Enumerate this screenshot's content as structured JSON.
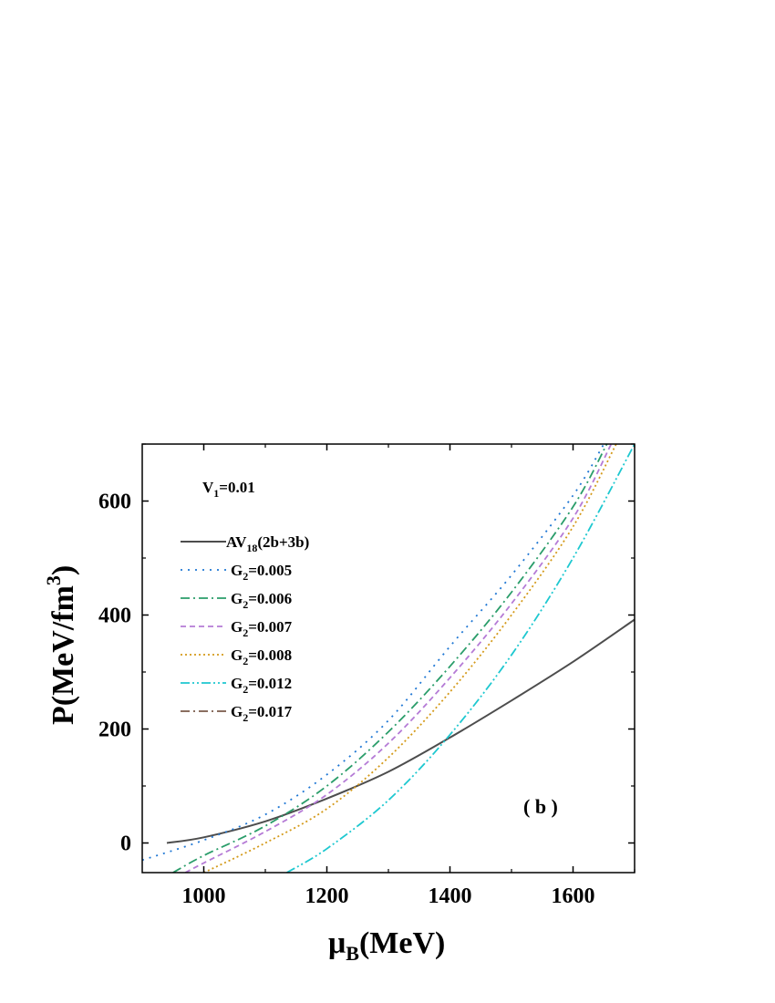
{
  "chart_data": {
    "type": "line",
    "xlabel_main": "μ",
    "xlabel_sub": "B",
    "xlabel_rest": "(MeV)",
    "ylabel_main": "P(MeV/fm",
    "ylabel_sup": "3",
    "ylabel_close": ")",
    "xlim": [
      900,
      1700
    ],
    "ylim": [
      -52,
      700
    ],
    "xticks": [
      1000,
      1200,
      1400,
      1600
    ],
    "yticks": [
      0,
      200,
      400,
      600
    ],
    "xtick_labels": [
      "1000",
      "1200",
      "1400",
      "1600"
    ],
    "ytick_labels": [
      "0",
      "200",
      "400",
      "600"
    ],
    "annotation_main": "V",
    "annotation_sub": "1",
    "annotation_rest": "=0.01",
    "panel_label": "( b )",
    "legend_position": "upper-left",
    "series": [
      {
        "label_main": "AV",
        "label_sub": "18",
        "label_rest": "(2b+3b)",
        "color": "#4d4d4d",
        "style": "solid",
        "points": [
          [
            940,
            0
          ],
          [
            1000,
            10
          ],
          [
            1100,
            38
          ],
          [
            1200,
            78
          ],
          [
            1300,
            125
          ],
          [
            1400,
            185
          ],
          [
            1500,
            250
          ],
          [
            1600,
            318
          ],
          [
            1700,
            392
          ]
        ]
      },
      {
        "label_main": "G",
        "label_sub": "2",
        "label_rest": "=0.005",
        "color": "#1f77d4",
        "style": "dot",
        "points": [
          [
            900,
            -30
          ],
          [
            1000,
            5
          ],
          [
            1100,
            50
          ],
          [
            1200,
            120
          ],
          [
            1300,
            215
          ],
          [
            1400,
            345
          ],
          [
            1500,
            470
          ],
          [
            1600,
            610
          ],
          [
            1650,
            700
          ]
        ]
      },
      {
        "label_main": "G",
        "label_sub": "2",
        "label_rest": "=0.006",
        "color": "#2a9d6a",
        "style": "dashdot",
        "points": [
          [
            950,
            -52
          ],
          [
            1000,
            -22
          ],
          [
            1100,
            30
          ],
          [
            1200,
            100
          ],
          [
            1300,
            195
          ],
          [
            1400,
            310
          ],
          [
            1500,
            440
          ],
          [
            1600,
            590
          ],
          [
            1655,
            700
          ]
        ]
      },
      {
        "label_main": "G",
        "label_sub": "2",
        "label_rest": "=0.007",
        "color": "#b57bd6",
        "style": "dash",
        "points": [
          [
            970,
            -52
          ],
          [
            1000,
            -35
          ],
          [
            1100,
            20
          ],
          [
            1200,
            85
          ],
          [
            1300,
            175
          ],
          [
            1400,
            290
          ],
          [
            1500,
            420
          ],
          [
            1600,
            570
          ],
          [
            1662,
            700
          ]
        ]
      },
      {
        "label_main": "G",
        "label_sub": "2",
        "label_rest": "=0.008",
        "color": "#d49a1a",
        "style": "dot-dense",
        "points": [
          [
            1000,
            -52
          ],
          [
            1100,
            0
          ],
          [
            1200,
            60
          ],
          [
            1300,
            150
          ],
          [
            1400,
            265
          ],
          [
            1500,
            400
          ],
          [
            1600,
            555
          ],
          [
            1670,
            700
          ]
        ]
      },
      {
        "label_main": "G",
        "label_sub": "2",
        "label_rest": "=0.012",
        "color": "#1ec8d0",
        "style": "dashdotdot",
        "points": [
          [
            1135,
            -52
          ],
          [
            1200,
            -10
          ],
          [
            1300,
            75
          ],
          [
            1400,
            190
          ],
          [
            1500,
            330
          ],
          [
            1600,
            500
          ],
          [
            1700,
            700
          ]
        ]
      },
      {
        "label_main": "G",
        "label_sub": "2",
        "label_rest": "=0.017",
        "color": "#7a5a4a",
        "style": "dashdot",
        "points": []
      }
    ]
  }
}
